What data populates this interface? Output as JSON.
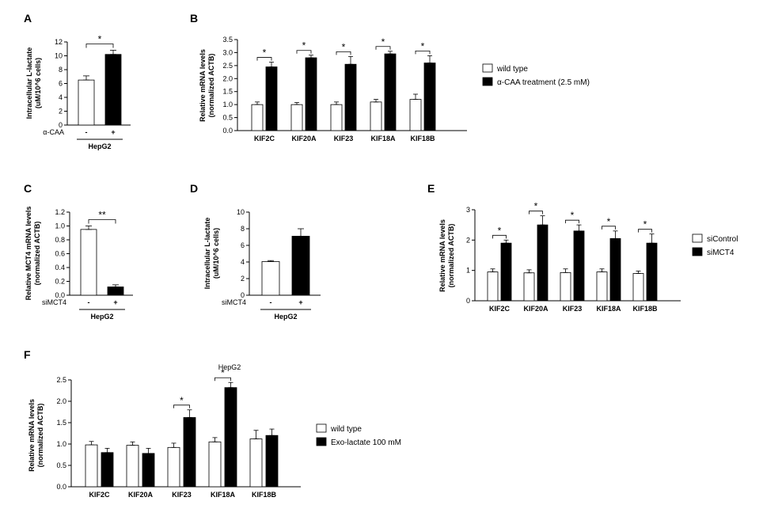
{
  "background_color": "#ffffff",
  "axis_color": "#000000",
  "panelA": {
    "label": "A",
    "type": "bar",
    "ylabel_line1": "Intracellular L-lactate",
    "ylabel_line2": "(uM/10^6 cells)",
    "xlabel": "α-CAA",
    "cell_line": "HepG2",
    "ylim": [
      0,
      12
    ],
    "ytick_step": 2,
    "bars": [
      {
        "cat": "-",
        "value": 6.5,
        "err": 0.6,
        "color": "#ffffff"
      },
      {
        "cat": "+",
        "value": 10.2,
        "err": 0.6,
        "color": "#000000"
      }
    ],
    "sig": "*"
  },
  "panelB": {
    "label": "B",
    "type": "grouped_bar",
    "ylabel_line1": "Relative mRNA levels",
    "ylabel_line2": "(normalized ACTB)",
    "categories": [
      "KIF2C",
      "KIF20A",
      "KIF23",
      "KIF18A",
      "KIF18B"
    ],
    "ylim": [
      0,
      3.5
    ],
    "ytick_step": 0.5,
    "series": [
      {
        "name": "wild type",
        "color": "#ffffff",
        "values": [
          1.0,
          1.0,
          1.0,
          1.1,
          1.2
        ],
        "err": [
          0.1,
          0.08,
          0.1,
          0.1,
          0.2
        ]
      },
      {
        "name": "α-CAA treatment  (2.5 mM)",
        "color": "#000000",
        "values": [
          2.45,
          2.8,
          2.55,
          2.95,
          2.6
        ],
        "err": [
          0.18,
          0.1,
          0.3,
          0.1,
          0.28
        ]
      }
    ],
    "sig": [
      "*",
      "*",
      "*",
      "*",
      "*"
    ]
  },
  "panelC": {
    "label": "C",
    "type": "bar",
    "ylabel_line1": "Relative MCT4 mRNA levels",
    "ylabel_line2": "(normalized ACTB)",
    "xlabel": "siMCT4",
    "cell_line": "HepG2",
    "ylim": [
      0,
      1.2
    ],
    "ytick_step": 0.2,
    "bars": [
      {
        "cat": "-",
        "value": 0.95,
        "err": 0.05,
        "color": "#ffffff"
      },
      {
        "cat": "+",
        "value": 0.12,
        "err": 0.03,
        "color": "#000000"
      }
    ],
    "sig": "**"
  },
  "panelD": {
    "label": "D",
    "type": "bar",
    "ylabel_line1": "Intracellular L-lactate",
    "ylabel_line2": "(uM/10^6 cells)",
    "xlabel": "siMCT4",
    "cell_line": "HepG2",
    "ylim": [
      0,
      10
    ],
    "ytick_step": 2,
    "bars": [
      {
        "cat": "-",
        "value": 4.05,
        "err": 0.12,
        "color": "#ffffff"
      },
      {
        "cat": "+",
        "value": 7.1,
        "err": 0.9,
        "color": "#000000"
      }
    ],
    "sig": ""
  },
  "panelE": {
    "label": "E",
    "type": "grouped_bar",
    "ylabel_line1": "Relative mRNA levels",
    "ylabel_line2": "(normalized ACTB)",
    "categories": [
      "KIF2C",
      "KIF20A",
      "KIF23",
      "KIF18A",
      "KIF18B"
    ],
    "ylim": [
      0,
      3
    ],
    "ytick_step": 1,
    "series": [
      {
        "name": "siControl",
        "color": "#ffffff",
        "values": [
          0.95,
          0.92,
          0.93,
          0.95,
          0.9
        ],
        "err": [
          0.1,
          0.1,
          0.12,
          0.1,
          0.08
        ]
      },
      {
        "name": "siMCT4",
        "color": "#000000",
        "values": [
          1.9,
          2.5,
          2.3,
          2.05,
          1.9
        ],
        "err": [
          0.1,
          0.3,
          0.2,
          0.25,
          0.3
        ]
      }
    ],
    "sig": [
      "*",
      "*",
      "*",
      "*",
      "*"
    ]
  },
  "panelF": {
    "label": "F",
    "type": "grouped_bar",
    "title": "HepG2",
    "ylabel_line1": "Relative mRNA levels",
    "ylabel_line2": "(normalized ACTB)",
    "categories": [
      "KIF2C",
      "KIF20A",
      "KIF23",
      "KIF18A",
      "KIF18B"
    ],
    "ylim": [
      0,
      2.5
    ],
    "ytick_step": 0.5,
    "series": [
      {
        "name": "wild type",
        "color": "#ffffff",
        "values": [
          0.98,
          0.97,
          0.92,
          1.05,
          1.12
        ],
        "err": [
          0.08,
          0.08,
          0.1,
          0.1,
          0.2
        ]
      },
      {
        "name": "Exo-lactate 100 mM",
        "color": "#000000",
        "values": [
          0.8,
          0.78,
          1.62,
          2.32,
          1.2
        ],
        "err": [
          0.1,
          0.12,
          0.18,
          0.12,
          0.15
        ]
      }
    ],
    "sig": [
      "",
      "",
      "*",
      "*",
      ""
    ]
  }
}
